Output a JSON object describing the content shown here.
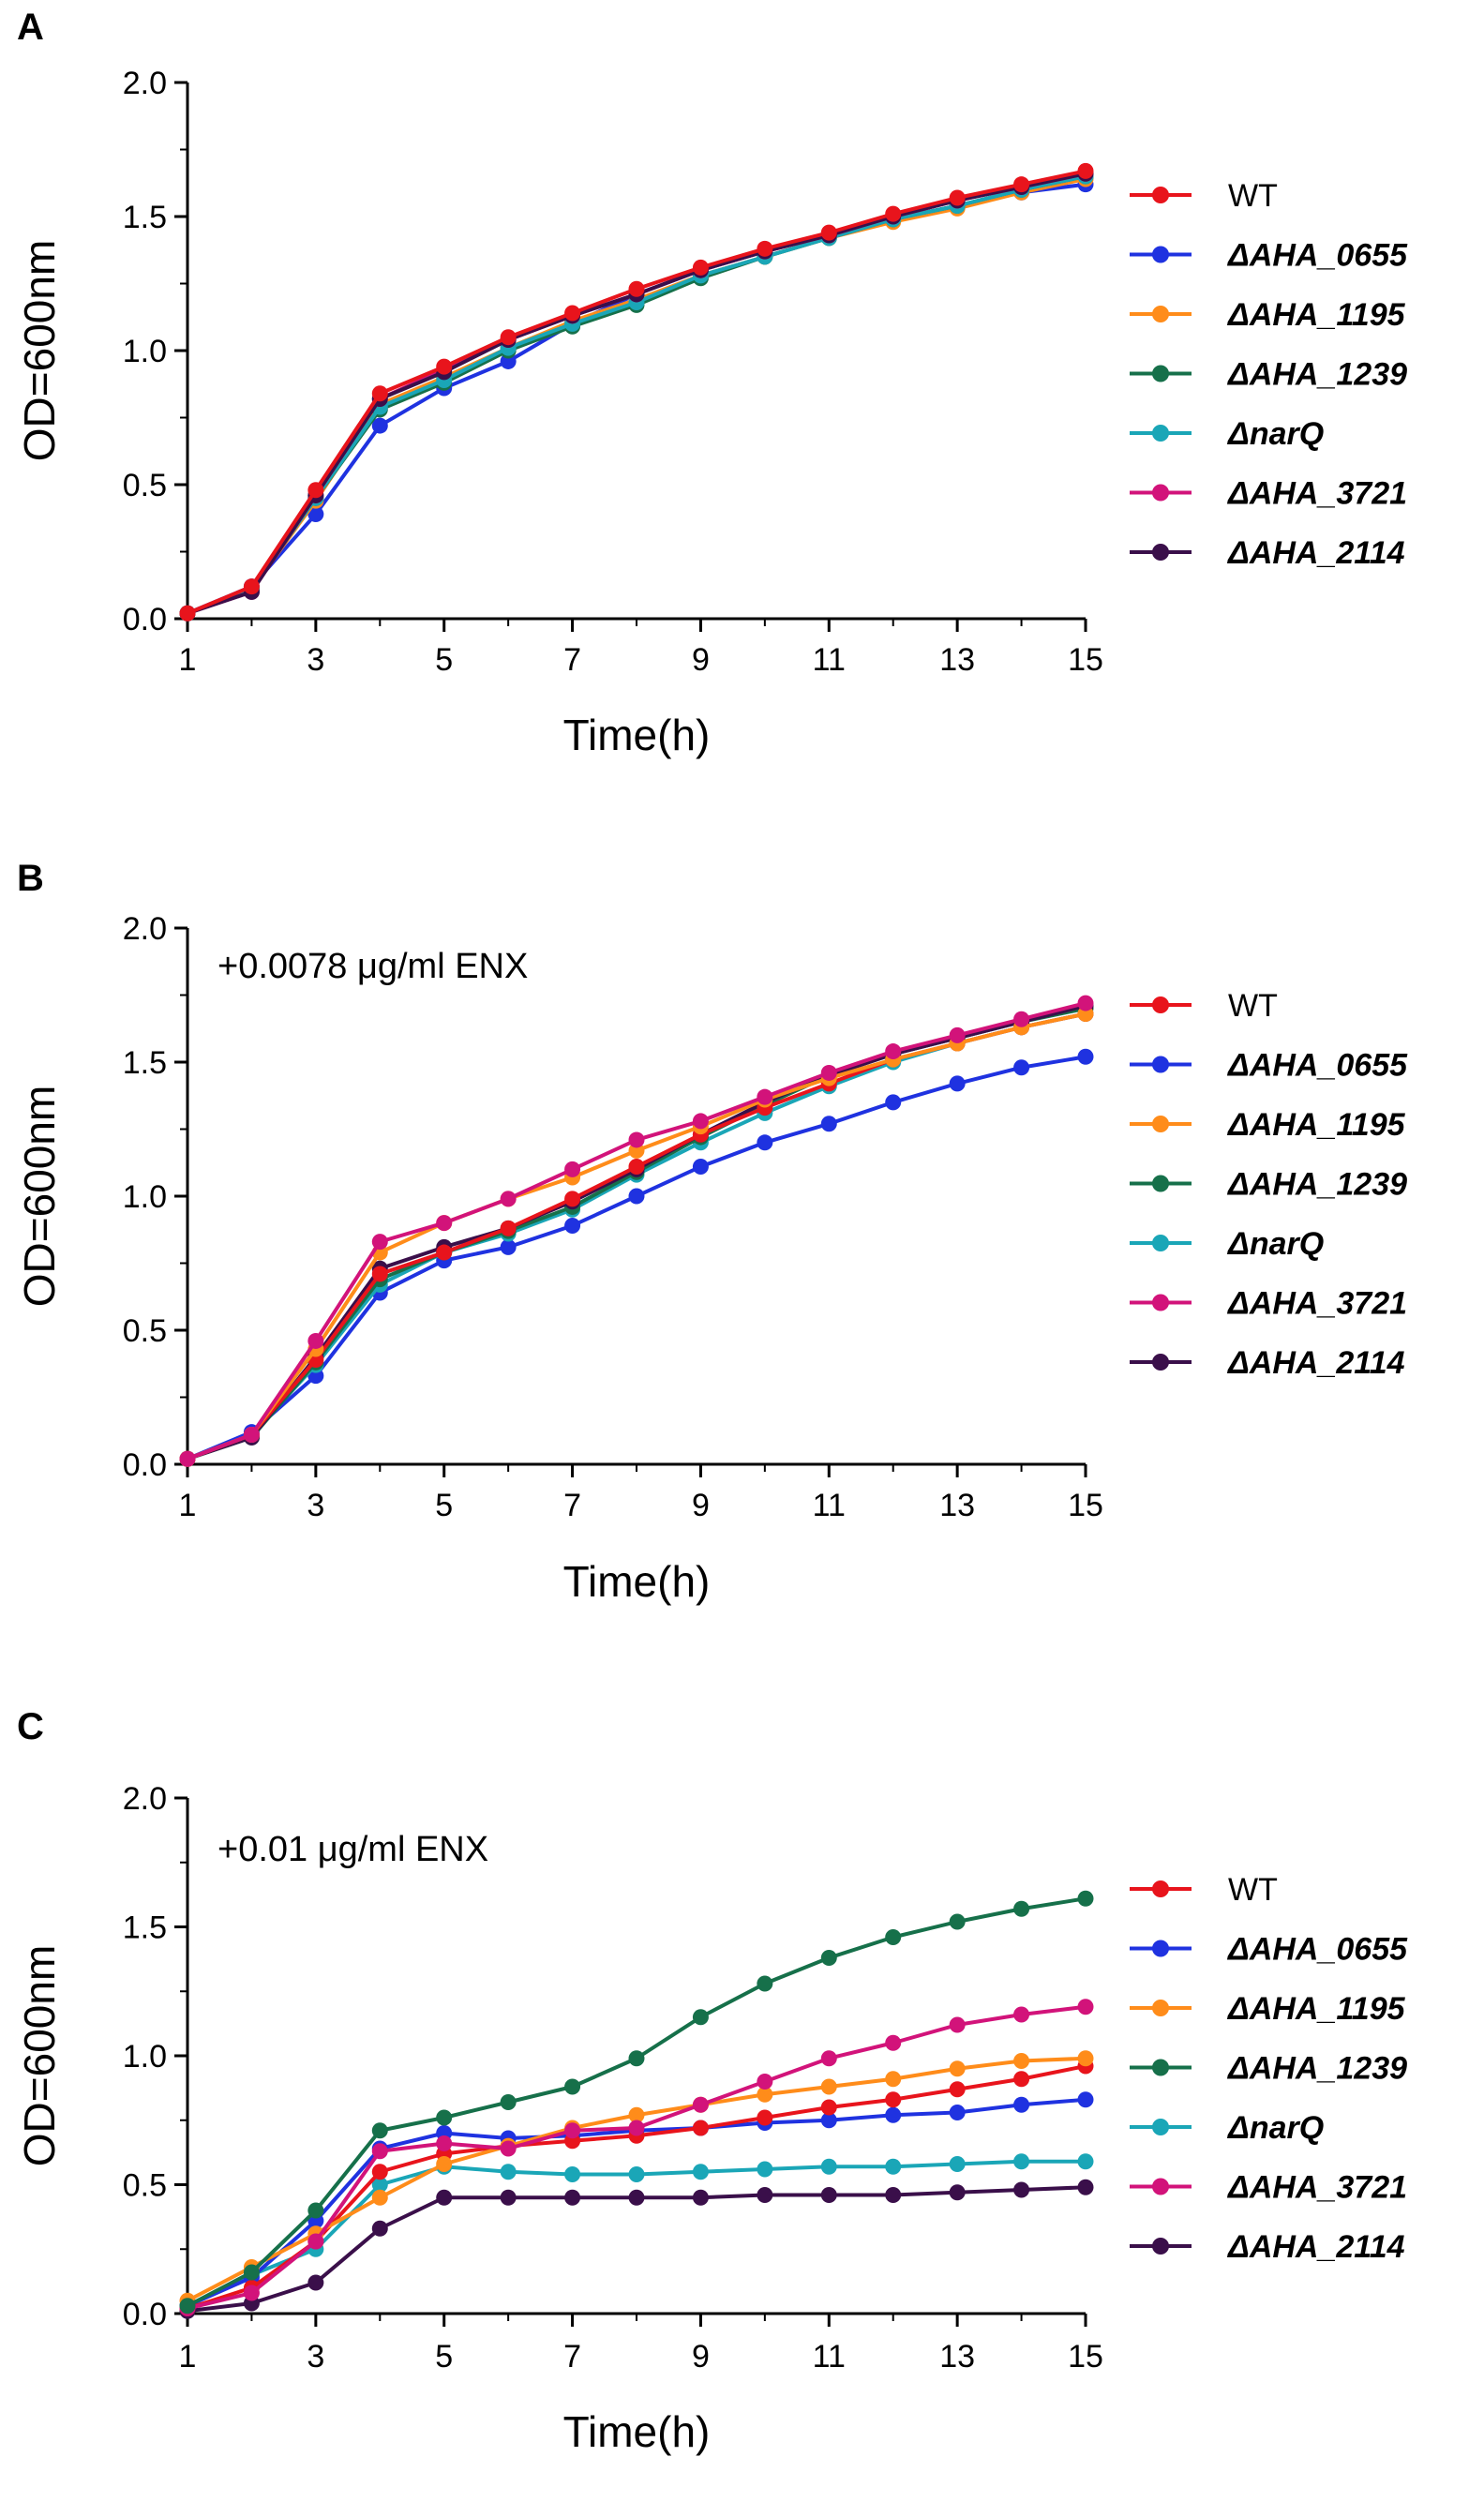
{
  "series_meta": [
    {
      "name": "WT",
      "color": "#e8141c"
    },
    {
      "name": "ΔAHA_0655",
      "color": "#1f32e0"
    },
    {
      "name": "ΔAHA_1195",
      "color": "#ff8c1a"
    },
    {
      "name": "ΔAHA_1239",
      "color": "#16704a"
    },
    {
      "name": "ΔnarQ",
      "color": "#1aa6b7"
    },
    {
      "name": "ΔAHA_3721",
      "color": "#d2137a"
    },
    {
      "name": "ΔAHA_2114",
      "color": "#3a0f4a"
    }
  ],
  "chart_data": [
    {
      "panel": "A",
      "type": "line",
      "title": "",
      "annotation": "",
      "xlabel": "Time(h)",
      "ylabel": "OD=600nm",
      "xlim": [
        1,
        15
      ],
      "ylim": [
        0,
        2.0
      ],
      "xticks": [
        1,
        3,
        5,
        7,
        9,
        11,
        13,
        15
      ],
      "yticks": [
        0.0,
        0.5,
        1.0,
        1.5,
        2.0
      ],
      "ytick_labels": [
        "0.0",
        "0.5",
        "1.0",
        "1.5",
        "2.0"
      ],
      "x": [
        1,
        2,
        3,
        4,
        5,
        6,
        7,
        8,
        9,
        10,
        11,
        12,
        13,
        14,
        15
      ],
      "series": [
        {
          "name": "ΔAHA_0655",
          "values": [
            0.02,
            0.12,
            0.39,
            0.72,
            0.86,
            0.96,
            1.1,
            1.21,
            1.3,
            1.37,
            1.43,
            1.49,
            1.54,
            1.59,
            1.62
          ]
        },
        {
          "name": "ΔAHA_1195",
          "values": [
            0.02,
            0.11,
            0.44,
            0.8,
            0.9,
            1.01,
            1.11,
            1.19,
            1.28,
            1.35,
            1.42,
            1.48,
            1.53,
            1.59,
            1.64
          ]
        },
        {
          "name": "ΔAHA_1239",
          "values": [
            0.02,
            0.11,
            0.45,
            0.78,
            0.88,
            1.0,
            1.09,
            1.17,
            1.27,
            1.35,
            1.42,
            1.49,
            1.54,
            1.6,
            1.65
          ]
        },
        {
          "name": "ΔnarQ",
          "values": [
            0.02,
            0.11,
            0.45,
            0.79,
            0.89,
            1.01,
            1.1,
            1.18,
            1.28,
            1.35,
            1.42,
            1.49,
            1.54,
            1.6,
            1.65
          ]
        },
        {
          "name": "ΔAHA_3721",
          "values": [
            0.02,
            0.1,
            0.46,
            0.82,
            0.93,
            1.04,
            1.13,
            1.21,
            1.3,
            1.37,
            1.43,
            1.5,
            1.56,
            1.61,
            1.66
          ]
        },
        {
          "name": "ΔAHA_2114",
          "values": [
            0.02,
            0.1,
            0.46,
            0.82,
            0.92,
            1.04,
            1.13,
            1.21,
            1.3,
            1.37,
            1.43,
            1.5,
            1.56,
            1.61,
            1.66
          ]
        },
        {
          "name": "WT",
          "values": [
            0.02,
            0.12,
            0.48,
            0.84,
            0.94,
            1.05,
            1.14,
            1.23,
            1.31,
            1.38,
            1.44,
            1.51,
            1.57,
            1.62,
            1.67
          ]
        }
      ],
      "legend": [
        "WT",
        "ΔAHA_0655",
        "ΔAHA_1195",
        "ΔAHA_1239",
        "ΔnarQ",
        "ΔAHA_3721",
        "ΔAHA_2114"
      ]
    },
    {
      "panel": "B",
      "type": "line",
      "title": "",
      "annotation": "+0.0078 μg/ml ENX",
      "xlabel": "Time(h)",
      "ylabel": "OD=600nm",
      "xlim": [
        1,
        15
      ],
      "ylim": [
        0,
        2.0
      ],
      "xticks": [
        1,
        3,
        5,
        7,
        9,
        11,
        13,
        15
      ],
      "yticks": [
        0.0,
        0.5,
        1.0,
        1.5,
        2.0
      ],
      "ytick_labels": [
        "0.0",
        "0.5",
        "1.0",
        "1.5",
        "2.0"
      ],
      "x": [
        1,
        2,
        3,
        4,
        5,
        6,
        7,
        8,
        9,
        10,
        11,
        12,
        13,
        14,
        15
      ],
      "series": [
        {
          "name": "ΔAHA_0655",
          "values": [
            0.02,
            0.12,
            0.33,
            0.64,
            0.76,
            0.81,
            0.89,
            1.0,
            1.11,
            1.2,
            1.27,
            1.35,
            1.42,
            1.48,
            1.52
          ]
        },
        {
          "name": "ΔnarQ",
          "values": [
            0.02,
            0.11,
            0.37,
            0.67,
            0.79,
            0.86,
            0.95,
            1.08,
            1.2,
            1.31,
            1.41,
            1.5,
            1.57,
            1.63,
            1.68
          ]
        },
        {
          "name": "ΔAHA_1239",
          "values": [
            0.02,
            0.1,
            0.38,
            0.69,
            0.79,
            0.87,
            0.96,
            1.09,
            1.22,
            1.34,
            1.45,
            1.53,
            1.59,
            1.65,
            1.7
          ]
        },
        {
          "name": "ΔAHA_2114",
          "values": [
            0.02,
            0.1,
            0.4,
            0.73,
            0.81,
            0.88,
            0.98,
            1.1,
            1.23,
            1.35,
            1.45,
            1.53,
            1.59,
            1.65,
            1.71
          ]
        },
        {
          "name": "WT",
          "values": [
            0.02,
            0.11,
            0.39,
            0.71,
            0.79,
            0.88,
            0.99,
            1.11,
            1.23,
            1.33,
            1.42,
            1.51,
            1.57,
            1.63,
            1.68
          ]
        },
        {
          "name": "ΔAHA_1195",
          "values": [
            0.02,
            0.11,
            0.43,
            0.79,
            0.9,
            0.99,
            1.07,
            1.17,
            1.26,
            1.36,
            1.44,
            1.51,
            1.57,
            1.63,
            1.68
          ]
        },
        {
          "name": "ΔAHA_3721",
          "values": [
            0.02,
            0.11,
            0.46,
            0.83,
            0.9,
            0.99,
            1.1,
            1.21,
            1.28,
            1.37,
            1.46,
            1.54,
            1.6,
            1.66,
            1.72
          ]
        }
      ],
      "legend": [
        "WT",
        "ΔAHA_0655",
        "ΔAHA_1195",
        "ΔAHA_1239",
        "ΔnarQ",
        "ΔAHA_3721",
        "ΔAHA_2114"
      ]
    },
    {
      "panel": "C",
      "type": "line",
      "title": "",
      "annotation": "+0.01 μg/ml ENX",
      "xlabel": "Time(h)",
      "ylabel": "OD=600nm",
      "xlim": [
        1,
        15
      ],
      "ylim": [
        0,
        2.0
      ],
      "xticks": [
        1,
        3,
        5,
        7,
        9,
        11,
        13,
        15
      ],
      "yticks": [
        0.0,
        0.5,
        1.0,
        1.5,
        2.0
      ],
      "ytick_labels": [
        "0.0",
        "0.5",
        "1.0",
        "1.5",
        "2.0"
      ],
      "x": [
        1,
        2,
        3,
        4,
        5,
        6,
        7,
        8,
        9,
        10,
        11,
        12,
        13,
        14,
        15
      ],
      "series": [
        {
          "name": "ΔAHA_2114",
          "values": [
            0.01,
            0.04,
            0.12,
            0.33,
            0.45,
            0.45,
            0.45,
            0.45,
            0.45,
            0.46,
            0.46,
            0.46,
            0.47,
            0.48,
            0.49
          ]
        },
        {
          "name": "ΔnarQ",
          "values": [
            0.03,
            0.15,
            0.25,
            0.5,
            0.57,
            0.55,
            0.54,
            0.54,
            0.55,
            0.56,
            0.57,
            0.57,
            0.58,
            0.59,
            0.59
          ]
        },
        {
          "name": "ΔAHA_0655",
          "values": [
            0.03,
            0.14,
            0.36,
            0.64,
            0.7,
            0.68,
            0.69,
            0.71,
            0.72,
            0.74,
            0.75,
            0.77,
            0.78,
            0.81,
            0.83
          ]
        },
        {
          "name": "WT",
          "values": [
            0.02,
            0.1,
            0.28,
            0.55,
            0.62,
            0.65,
            0.67,
            0.69,
            0.72,
            0.76,
            0.8,
            0.83,
            0.87,
            0.91,
            0.96
          ]
        },
        {
          "name": "ΔAHA_1195",
          "values": [
            0.05,
            0.18,
            0.31,
            0.45,
            0.58,
            0.65,
            0.72,
            0.77,
            0.81,
            0.85,
            0.88,
            0.91,
            0.95,
            0.98,
            0.99
          ]
        },
        {
          "name": "ΔAHA_3721",
          "values": [
            0.02,
            0.08,
            0.28,
            0.63,
            0.66,
            0.64,
            0.71,
            0.72,
            0.81,
            0.9,
            0.99,
            1.05,
            1.12,
            1.16,
            1.19
          ]
        },
        {
          "name": "ΔAHA_1239",
          "values": [
            0.03,
            0.16,
            0.4,
            0.71,
            0.76,
            0.82,
            0.88,
            0.99,
            1.15,
            1.28,
            1.38,
            1.46,
            1.52,
            1.57,
            1.61
          ]
        }
      ],
      "legend": [
        "WT",
        "ΔAHA_0655",
        "ΔAHA_1195",
        "ΔAHA_1239",
        "ΔnarQ",
        "ΔAHA_3721",
        "ΔAHA_2114"
      ]
    }
  ]
}
